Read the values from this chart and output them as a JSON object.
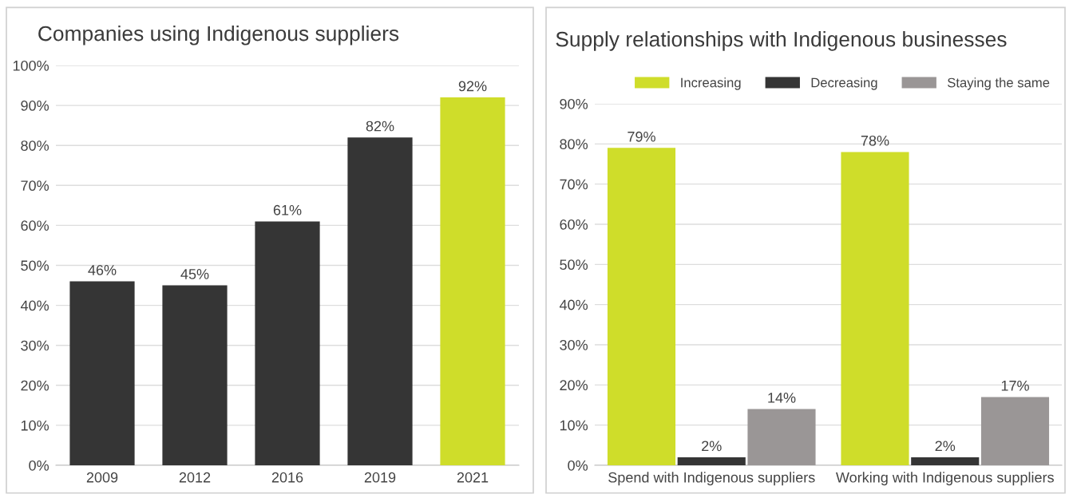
{
  "chart_data": [
    {
      "type": "bar",
      "title": "Companies using Indigenous suppliers",
      "categories": [
        "2009",
        "2012",
        "2016",
        "2019",
        "2021"
      ],
      "values": [
        46,
        45,
        61,
        82,
        92
      ],
      "colors": [
        "#353535",
        "#353535",
        "#353535",
        "#353535",
        "#cfdd2a"
      ],
      "value_labels": [
        "46%",
        "45%",
        "61%",
        "82%",
        "92%"
      ],
      "ylim": [
        0,
        100
      ],
      "yticks": [
        {
          "value": 0,
          "label": "0%"
        },
        {
          "value": 10,
          "label": "10%"
        },
        {
          "value": 20,
          "label": "20%"
        },
        {
          "value": 30,
          "label": "30%"
        },
        {
          "value": 40,
          "label": "40%"
        },
        {
          "value": 50,
          "label": "50%"
        },
        {
          "value": 60,
          "label": "60%"
        },
        {
          "value": 70,
          "label": "70%"
        },
        {
          "value": 80,
          "label": "80%"
        },
        {
          "value": 90,
          "label": "90%"
        },
        {
          "value": 100,
          "label": "100%"
        }
      ],
      "grid": "y"
    },
    {
      "type": "bar",
      "title": "Supply relationships with Indigenous businesses",
      "categories": [
        "Spend with Indigenous suppliers",
        "Working with Indigenous suppliers"
      ],
      "series": [
        {
          "name": "Increasing",
          "color": "#cfdd2a",
          "values": [
            79,
            78
          ],
          "value_labels": [
            "79%",
            "78%"
          ]
        },
        {
          "name": "Decreasing",
          "color": "#353535",
          "values": [
            2,
            2
          ],
          "value_labels": [
            "2%",
            "2%"
          ]
        },
        {
          "name": "Staying the same",
          "color": "#9a9696",
          "values": [
            14,
            17
          ],
          "value_labels": [
            "14%",
            "17%"
          ]
        }
      ],
      "ylim": [
        0,
        90
      ],
      "yticks": [
        {
          "value": 0,
          "label": "0%"
        },
        {
          "value": 10,
          "label": "10%"
        },
        {
          "value": 20,
          "label": "20%"
        },
        {
          "value": 30,
          "label": "30%"
        },
        {
          "value": 40,
          "label": "40%"
        },
        {
          "value": 50,
          "label": "50%"
        },
        {
          "value": 60,
          "label": "60%"
        },
        {
          "value": 70,
          "label": "70%"
        },
        {
          "value": 80,
          "label": "80%"
        },
        {
          "value": 90,
          "label": "90%"
        }
      ],
      "grid": "y",
      "legend": "top"
    }
  ]
}
